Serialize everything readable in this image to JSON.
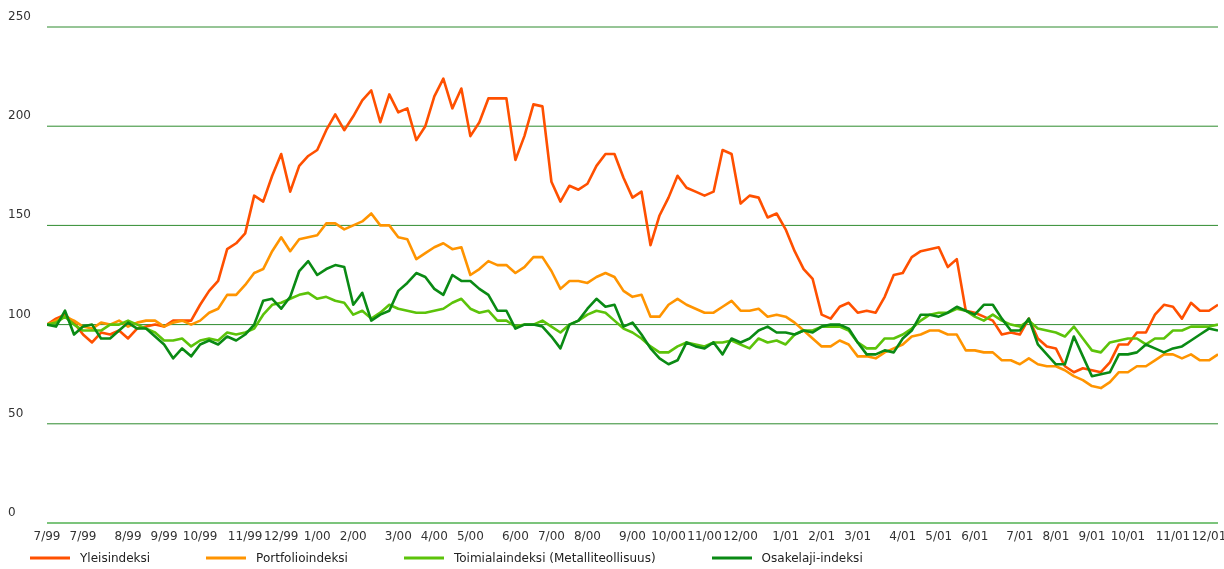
{
  "chart_data": {
    "type": "line",
    "categories": [
      "7/99",
      null,
      null,
      null,
      "7/99",
      null,
      null,
      null,
      null,
      "8/99",
      null,
      null,
      null,
      "9/99",
      null,
      null,
      null,
      "10/99",
      null,
      null,
      null,
      null,
      "11/99",
      null,
      null,
      null,
      "12/99",
      null,
      null,
      null,
      "1/00",
      null,
      null,
      null,
      "2/00",
      null,
      null,
      null,
      null,
      "3/00",
      null,
      null,
      null,
      "4/00",
      null,
      null,
      null,
      "5/00",
      null,
      null,
      null,
      null,
      "6/00",
      null,
      null,
      null,
      "7/00",
      null,
      null,
      null,
      "8/00",
      null,
      null,
      null,
      null,
      "9/00",
      null,
      null,
      null,
      "10/00",
      null,
      null,
      null,
      "11/00",
      null,
      null,
      null,
      "12/00",
      null,
      null,
      null,
      null,
      "1/01",
      null,
      null,
      null,
      "2/01",
      null,
      null,
      null,
      "3/01",
      null,
      null,
      null,
      null,
      "4/01",
      null,
      null,
      null,
      "5/01",
      null,
      null,
      null,
      "6/01",
      null,
      null,
      null,
      null,
      "7/01",
      null,
      null,
      null,
      "8/01",
      null,
      null,
      null,
      "9/01",
      null,
      null,
      null,
      "10/01",
      null,
      null,
      null,
      null,
      "11/01",
      null,
      null,
      null,
      "12/01",
      null
    ],
    "series": [
      {
        "name": "Yleisindeksi",
        "color": "#ff5000",
        "values": [
          100,
          103,
          105,
          101,
          95,
          91,
          96,
          95,
          97,
          93,
          98,
          99,
          100,
          99,
          102,
          102,
          102,
          110,
          117,
          122,
          138,
          141,
          146,
          165,
          162,
          175,
          186,
          167,
          180,
          185,
          188,
          198,
          206,
          198,
          205,
          213,
          218,
          202,
          216,
          207,
          209,
          193,
          200,
          215,
          224,
          209,
          219,
          195,
          202,
          214,
          214,
          214,
          183,
          195,
          211,
          210,
          172,
          162,
          170,
          168,
          171,
          180,
          186,
          186,
          174,
          164,
          167,
          140,
          155,
          164,
          175,
          169,
          167,
          165,
          167,
          188,
          186,
          161,
          165,
          164,
          154,
          156,
          148,
          137,
          128,
          123,
          105,
          103,
          109,
          111,
          106,
          107,
          106,
          114,
          125,
          126,
          134,
          137,
          138,
          139,
          129,
          133,
          107,
          106,
          104,
          102,
          95,
          96,
          95,
          103,
          93,
          89,
          88,
          79,
          76,
          78,
          77,
          76,
          81,
          90,
          90,
          96,
          96,
          105,
          110,
          109,
          103,
          111,
          107,
          107,
          110
        ]
      },
      {
        "name": "Portfolioindeksi",
        "color": "#ff9400",
        "values": [
          100,
          102,
          104,
          102,
          99,
          98,
          101,
          100,
          102,
          99,
          101,
          102,
          102,
          99,
          101,
          102,
          100,
          102,
          106,
          108,
          115,
          115,
          120,
          126,
          128,
          137,
          144,
          137,
          143,
          144,
          145,
          151,
          151,
          148,
          150,
          152,
          156,
          150,
          150,
          144,
          143,
          133,
          136,
          139,
          141,
          138,
          139,
          125,
          128,
          132,
          130,
          130,
          126,
          129,
          134,
          134,
          127,
          118,
          122,
          122,
          121,
          124,
          126,
          124,
          117,
          114,
          115,
          104,
          104,
          110,
          113,
          110,
          108,
          106,
          106,
          109,
          112,
          107,
          107,
          108,
          104,
          105,
          104,
          101,
          97,
          93,
          89,
          89,
          92,
          90,
          84,
          84,
          83,
          86,
          88,
          90,
          94,
          95,
          97,
          97,
          95,
          95,
          87,
          87,
          86,
          86,
          82,
          82,
          80,
          83,
          80,
          79,
          79,
          77,
          74,
          72,
          69,
          68,
          71,
          76,
          76,
          79,
          79,
          82,
          85,
          85,
          83,
          85,
          82,
          82,
          85
        ]
      },
      {
        "name": "Toimialaindeksi (Metalliteollisuus)",
        "color": "#5cc30a",
        "values": [
          100,
          101,
          104,
          100,
          97,
          97,
          97,
          100,
          100,
          102,
          100,
          98,
          96,
          92,
          92,
          93,
          89,
          92,
          93,
          92,
          96,
          95,
          96,
          98,
          105,
          110,
          111,
          113,
          115,
          116,
          113,
          114,
          112,
          111,
          105,
          107,
          103,
          106,
          110,
          108,
          107,
          106,
          106,
          107,
          108,
          111,
          113,
          108,
          106,
          107,
          102,
          102,
          99,
          100,
          100,
          102,
          99,
          96,
          100,
          102,
          105,
          107,
          106,
          102,
          98,
          96,
          93,
          89,
          86,
          86,
          89,
          91,
          90,
          89,
          91,
          91,
          92,
          90,
          88,
          93,
          91,
          92,
          90,
          95,
          97,
          97,
          99,
          99,
          99,
          97,
          91,
          88,
          88,
          93,
          93,
          95,
          98,
          102,
          105,
          106,
          106,
          108,
          107,
          104,
          102,
          105,
          102,
          100,
          99,
          102,
          98,
          97,
          96,
          94,
          99,
          93,
          87,
          86,
          91,
          92,
          93,
          93,
          90,
          93,
          93,
          97,
          97,
          99,
          99,
          99,
          100
        ]
      },
      {
        "name": "Osakelaji-indeksi",
        "color": "#0a8a14",
        "values": [
          100,
          99,
          107,
          95,
          99,
          100,
          93,
          93,
          97,
          101,
          98,
          98,
          94,
          90,
          83,
          88,
          84,
          90,
          92,
          90,
          94,
          92,
          95,
          100,
          112,
          113,
          108,
          114,
          127,
          132,
          125,
          128,
          130,
          129,
          110,
          116,
          102,
          105,
          107,
          117,
          121,
          126,
          124,
          118,
          115,
          125,
          122,
          122,
          118,
          115,
          107,
          107,
          98,
          100,
          100,
          99,
          94,
          88,
          100,
          102,
          108,
          113,
          109,
          110,
          99,
          101,
          95,
          88,
          83,
          80,
          82,
          91,
          89,
          88,
          91,
          85,
          93,
          91,
          93,
          97,
          99,
          96,
          96,
          95,
          97,
          96,
          99,
          100,
          100,
          98,
          91,
          85,
          85,
          87,
          86,
          93,
          97,
          105,
          105,
          104,
          106,
          109,
          107,
          105,
          110,
          110,
          103,
          97,
          97,
          103,
          90,
          85,
          80,
          80,
          94,
          84,
          74,
          75,
          76,
          85,
          85,
          86,
          90,
          88,
          86,
          88,
          89,
          92,
          95,
          98,
          97
        ]
      }
    ],
    "ylim": [
      0,
      250
    ],
    "yticks": [
      0,
      50,
      100,
      150,
      200,
      250
    ],
    "grid": "y",
    "legend": "bottom",
    "marker": "none",
    "line_style": "solid"
  }
}
